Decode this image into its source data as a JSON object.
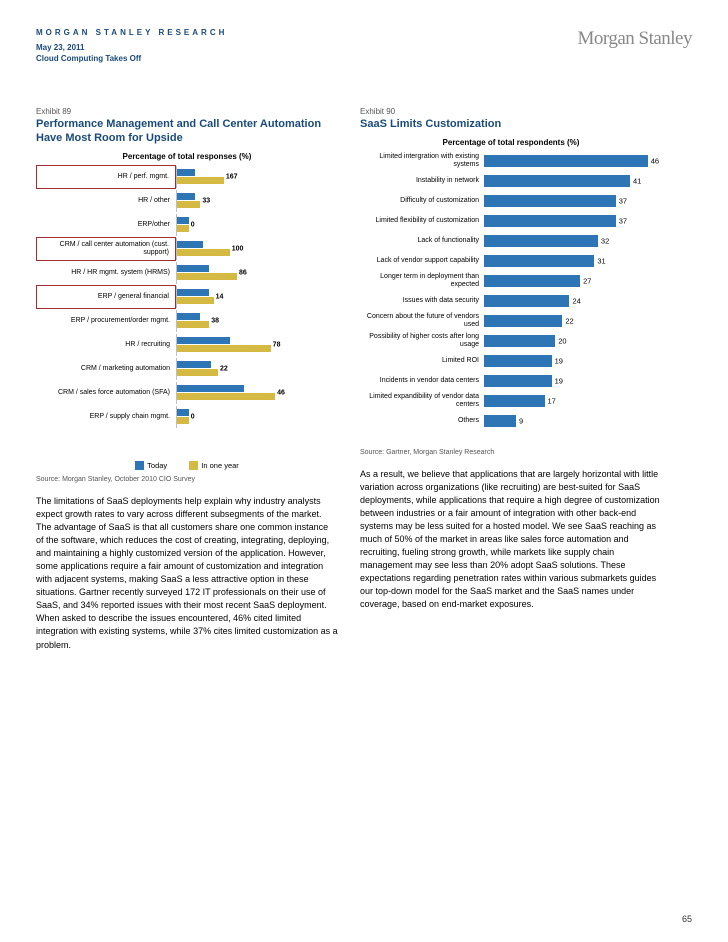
{
  "header": {
    "research": "MORGAN STANLEY RESEARCH",
    "date": "May 23, 2011",
    "subtitle": "Cloud Computing Takes Off",
    "logo": "Morgan Stanley"
  },
  "left": {
    "exhibit": "Exhibit 89",
    "title": "Performance Management and Call Center Automation Have Most Room for Upside",
    "subtitle": "Percentage of total responses (%)",
    "max": 110,
    "rows": [
      {
        "label": "HR / perf. mgmt.",
        "today": 12,
        "year": 32,
        "value": "167",
        "boxed": true
      },
      {
        "label": "HR / other",
        "today": 12,
        "year": 16,
        "value": "33",
        "boxed": false
      },
      {
        "label": "ERP/other",
        "today": 8,
        "year": 8,
        "value": "0",
        "boxed": false
      },
      {
        "label": "CRM / call center automation (cust. support)",
        "today": 18,
        "year": 36,
        "value": "100",
        "boxed": true
      },
      {
        "label": "HR / HR mgmt. system (HRMS)",
        "today": 22,
        "year": 41,
        "value": "86",
        "boxed": false
      },
      {
        "label": "ERP / general financial",
        "today": 22,
        "year": 25,
        "value": "14",
        "boxed": true
      },
      {
        "label": "ERP / procurement/order mgmt.",
        "today": 16,
        "year": 22,
        "value": "38",
        "boxed": false
      },
      {
        "label": "HR / recruiting",
        "today": 36,
        "year": 64,
        "value": "78",
        "boxed": false
      },
      {
        "label": "CRM / marketing automation",
        "today": 23,
        "year": 28,
        "value": "22",
        "boxed": false
      },
      {
        "label": "CRM / sales force automation (SFA)",
        "today": 46,
        "year": 67,
        "value": "46",
        "boxed": false
      },
      {
        "label": "ERP / supply chain mgmt.",
        "today": 8,
        "year": 8,
        "value": "0",
        "boxed": false
      }
    ],
    "legend_today": "Today",
    "legend_year": "In one year",
    "color_today": "#2e75b6",
    "color_year": "#d4b943",
    "source": "Source: Morgan Stanley, October 2010 CIO Survey",
    "body": "The limitations of SaaS deployments help explain why industry analysts expect growth rates to vary across different subsegments of the market. The advantage of SaaS is that all customers share one common instance of the software, which reduces the cost of creating, integrating, deploying, and maintaining a highly customized version of the application. However, some applications require a fair amount of customization and integration with adjacent systems, making SaaS a less attractive option in these situations. Gartner recently surveyed 172 IT professionals on their use of SaaS, and 34% reported issues with their most recent SaaS deployment. When asked to describe the issues encountered, 46% cited limited integration with existing systems, while 37% cites limited customization as a problem."
  },
  "right": {
    "exhibit": "Exhibit 90",
    "title": "SaaS Limits Customization",
    "subtitle": "Percentage of total respondents (%)",
    "max": 50,
    "color": "#2e75b6",
    "rows": [
      {
        "label": "Limited intergration with existing systems",
        "value": 46
      },
      {
        "label": "Instability in network",
        "value": 41
      },
      {
        "label": "Difficulty of customization",
        "value": 37
      },
      {
        "label": "Limited flexibility of customization",
        "value": 37
      },
      {
        "label": "Lack of functionality",
        "value": 32
      },
      {
        "label": "Lack of vendor support capability",
        "value": 31
      },
      {
        "label": "Longer term in deployment than expected",
        "value": 27
      },
      {
        "label": "Issues with data security",
        "value": 24
      },
      {
        "label": "Concern about the future of vendors used",
        "value": 22
      },
      {
        "label": "Possibility of higher costs after long usage",
        "value": 20
      },
      {
        "label": "Limited ROI",
        "value": 19
      },
      {
        "label": "Incidents in vendor data centers",
        "value": 19
      },
      {
        "label": "Limited expandibility of vendor data centers",
        "value": 17
      },
      {
        "label": "Others",
        "value": 9
      }
    ],
    "source": "Source: Gartner, Morgan Stanley Research",
    "body": "As a result, we believe that applications that are largely horizontal with little variation across organizations (like recruiting) are best-suited for SaaS deployments, while applications that require a high degree of customization between industries or a fair amount of integration with other back-end systems may be less suited for a hosted model. We see SaaS reaching as much of 50% of the market in areas like sales force automation and recruiting, fueling strong growth, while markets like supply chain management may see less than 20% adopt SaaS solutions. These expectations regarding penetration rates within various submarkets guides our top-down model for the SaaS market and the SaaS names under coverage, based on end-market exposures."
  },
  "page": "65"
}
